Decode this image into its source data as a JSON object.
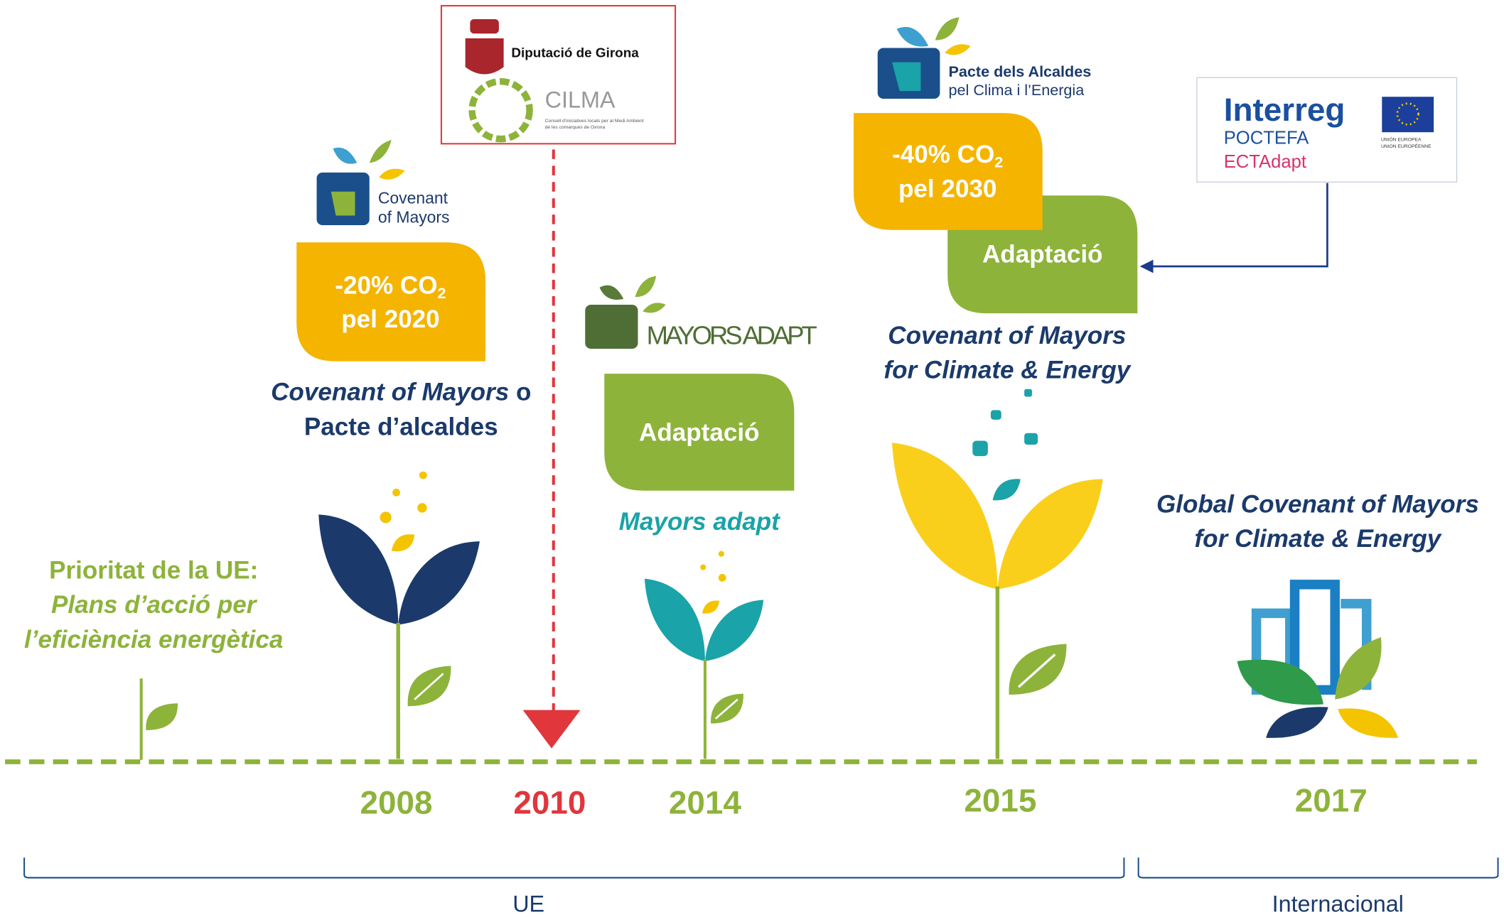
{
  "intro": {
    "heading": "Prioritat de la UE:",
    "lines": [
      "Plans d’acció per",
      "l’eficiència energètica"
    ]
  },
  "milestones": [
    {
      "year": "2008",
      "logo": {
        "line1": "Covenant",
        "line2": "of Mayors"
      },
      "badge": {
        "label": "-20% CO",
        "sub": "2",
        "line2": "pel 2020"
      },
      "caption": {
        "name": "Covenant of Mayors",
        "suffix": " o",
        "line2": "Pacte d’alcaldes"
      }
    },
    {
      "year": "2010",
      "logo": {
        "name": "Diputació de Girona",
        "cilma": "CILMA",
        "cilma_note": [
          "Consell d'iniciatives locals per al Medi Ambient",
          "de les comarques de Girona"
        ]
      }
    },
    {
      "year": "2014",
      "logo": {
        "name": "MAYORS ADAPT"
      },
      "badge": {
        "label": "Adaptació"
      },
      "caption": {
        "name": "Mayors adapt"
      }
    },
    {
      "year": "2015",
      "logo": {
        "line1": "Pacte dels Alcaldes",
        "line2": "pel Clima i l’Energia"
      },
      "badges": [
        {
          "label": "-40% CO",
          "sub": "2",
          "line2": "pel 2030"
        },
        {
          "label": "Adaptació"
        }
      ],
      "caption": {
        "name": "Covenant of Mayors",
        "line2": "for Climate & Energy"
      }
    },
    {
      "year": "2017",
      "caption": {
        "name": "Global Covenant of Mayors",
        "line2": "for Climate & Energy"
      }
    }
  ],
  "partner": {
    "name": "Interreg",
    "program": "POCTEFA",
    "project": "ECTAdapt",
    "eu": [
      "UNIÓN EUROPEA",
      "UNION EUROPÉENNE"
    ]
  },
  "scopes": [
    "UE",
    "Internacional"
  ]
}
